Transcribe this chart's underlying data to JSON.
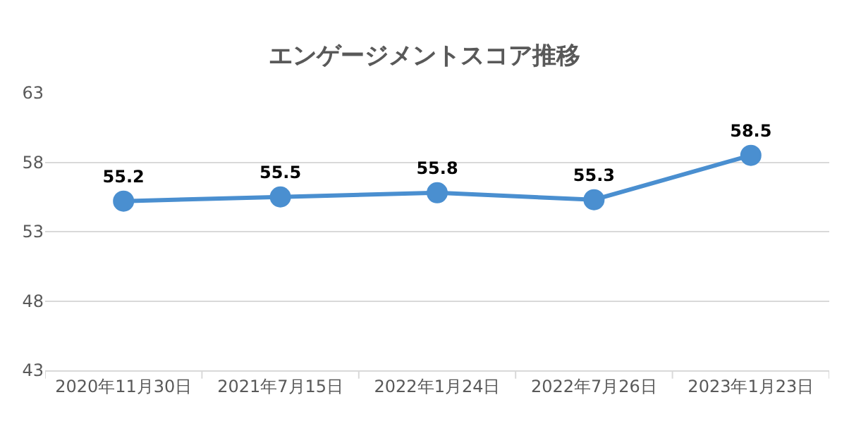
{
  "chart_data": {
    "type": "line",
    "title": "エンゲージメントスコア推移",
    "categories": [
      "2020年11月30日",
      "2021年7月15日",
      "2022年1月24日",
      "2022年7月26日",
      "2023年1月23日"
    ],
    "series": [
      {
        "color": "#4a8fd0",
        "values": [
          55.2,
          55.5,
          55.8,
          55.3,
          58.5
        ]
      }
    ],
    "ylim": [
      43,
      63
    ],
    "yticks": [
      43,
      48,
      53,
      58,
      63
    ],
    "grid": "y",
    "marker": "circle",
    "line_style": "solid",
    "data_labels": true,
    "legend": false
  }
}
